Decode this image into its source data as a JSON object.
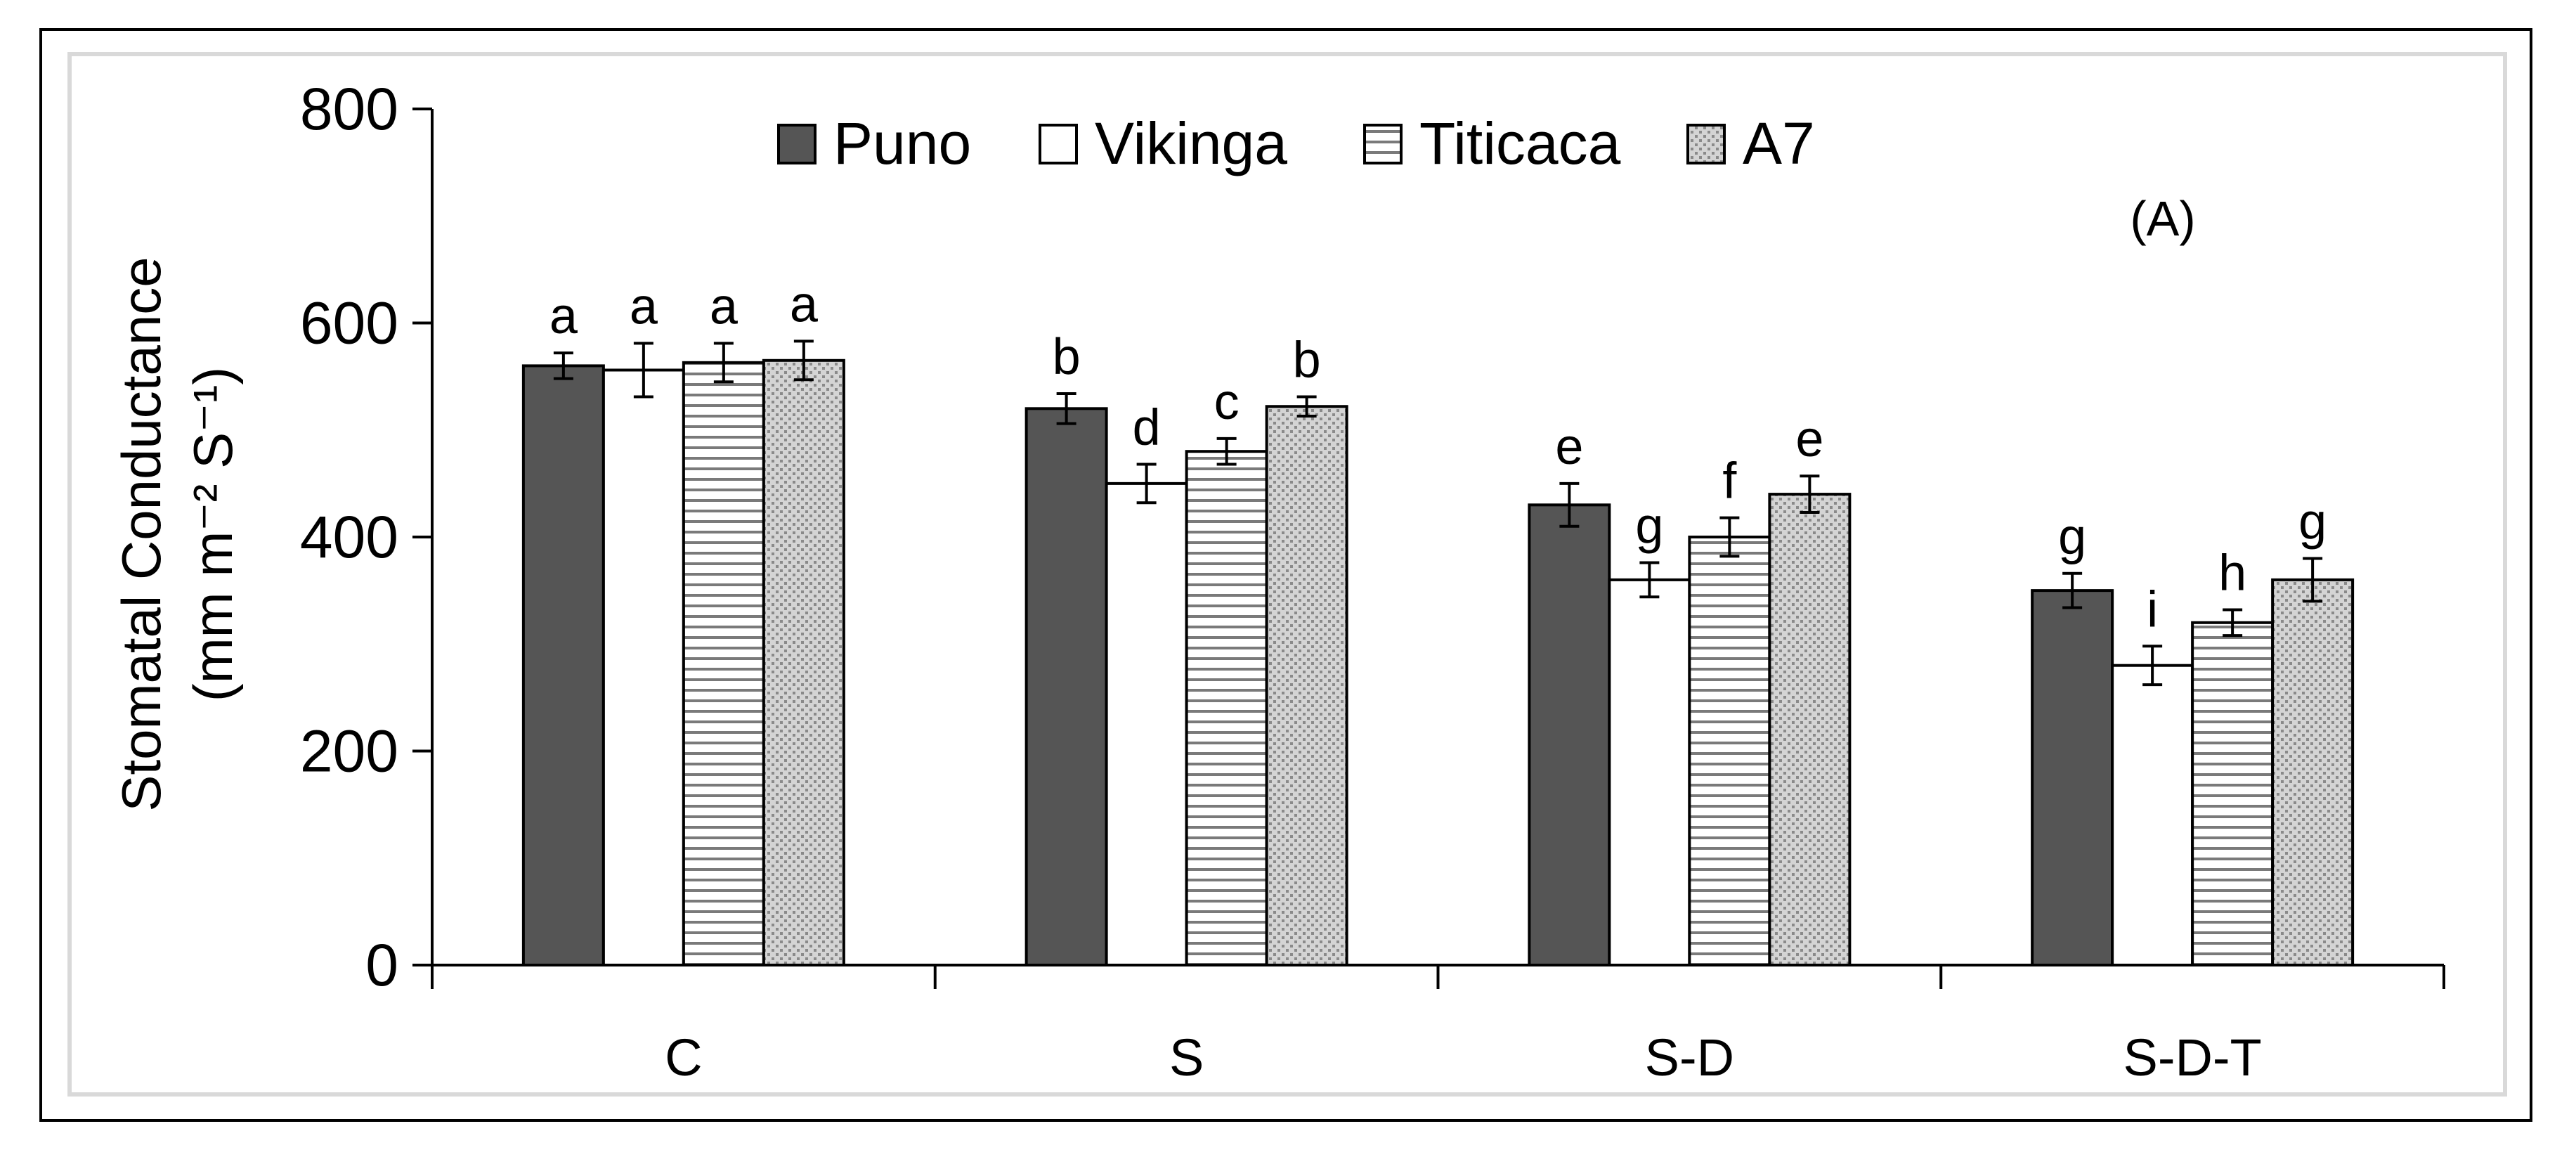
{
  "chart_data": {
    "type": "bar",
    "panel_label": "(A)",
    "ylabel_line1": "Stomatal Conductance",
    "ylabel_line2": "(mm m⁻² S⁻¹)",
    "ylim": [
      0,
      800
    ],
    "yticks": [
      "0",
      "200",
      "400",
      "600",
      "800"
    ],
    "categories": [
      "C",
      "S",
      "S-D",
      "S-D-T"
    ],
    "series": [
      {
        "name": "Puno",
        "pattern": "solid-dark",
        "values": [
          560,
          520,
          430,
          350
        ],
        "errors": [
          12,
          14,
          20,
          16
        ],
        "letters": [
          "a",
          "b",
          "e",
          "g"
        ]
      },
      {
        "name": "Vikinga",
        "pattern": "white",
        "values": [
          556,
          450,
          360,
          280
        ],
        "errors": [
          25,
          18,
          16,
          18
        ],
        "letters": [
          "a",
          "d",
          "g",
          "i"
        ]
      },
      {
        "name": "Titicaca",
        "pattern": "horizontal-lines",
        "values": [
          563,
          480,
          400,
          320
        ],
        "errors": [
          18,
          12,
          18,
          12
        ],
        "letters": [
          "a",
          "c",
          "f",
          "h"
        ]
      },
      {
        "name": "A7",
        "pattern": "dotted",
        "values": [
          565,
          522,
          440,
          360
        ],
        "errors": [
          18,
          9,
          17,
          20
        ],
        "letters": [
          "a",
          "b",
          "e",
          "g"
        ]
      }
    ],
    "legend_position": "top-center",
    "grid": false
  },
  "colors": {
    "dark_bar": "#555555",
    "dotted_bg": "#d4d4d4",
    "dotted_dot": "#8a8a8a",
    "stripe": "#7a7a7a",
    "axis": "#000000"
  }
}
